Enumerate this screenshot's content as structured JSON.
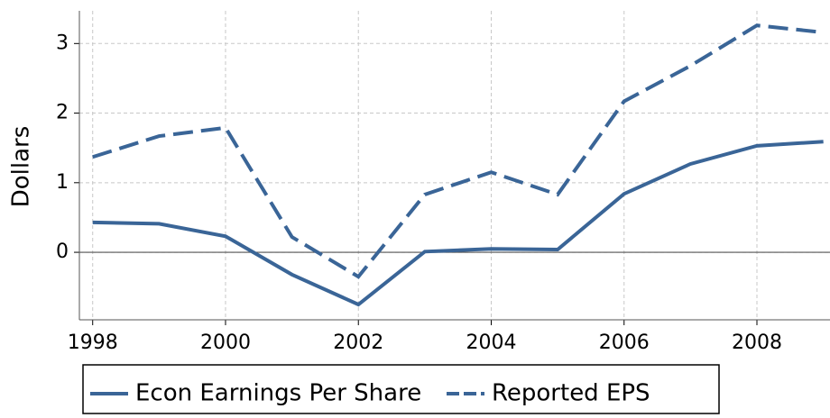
{
  "chart_data": {
    "type": "line",
    "y_label": "Dollars",
    "x": [
      1998,
      1999,
      2000,
      2001,
      2002,
      2003,
      2004,
      2005,
      2006,
      2007,
      2008,
      2009
    ],
    "series": [
      {
        "name": "Econ Earnings Per Share",
        "color": "#3a6597",
        "dash": "solid",
        "values": [
          0.43,
          0.41,
          0.23,
          -0.32,
          -0.75,
          0.01,
          0.05,
          0.04,
          0.84,
          1.27,
          1.53,
          1.59
        ]
      },
      {
        "name": "Reported EPS",
        "color": "#3a6597",
        "dash": "dashed",
        "values": [
          1.37,
          1.67,
          1.79,
          0.22,
          -0.35,
          0.83,
          1.15,
          0.83,
          2.17,
          2.68,
          3.26,
          3.16
        ]
      }
    ],
    "xlim": [
      1997.8,
      2009.1
    ],
    "ylim": [
      -0.97,
      3.47
    ],
    "xticks": [
      1998,
      2000,
      2002,
      2004,
      2006,
      2008
    ],
    "yticks": [
      0,
      1,
      2,
      3
    ],
    "grid": true,
    "zero_line": true,
    "legend": "bottom"
  }
}
